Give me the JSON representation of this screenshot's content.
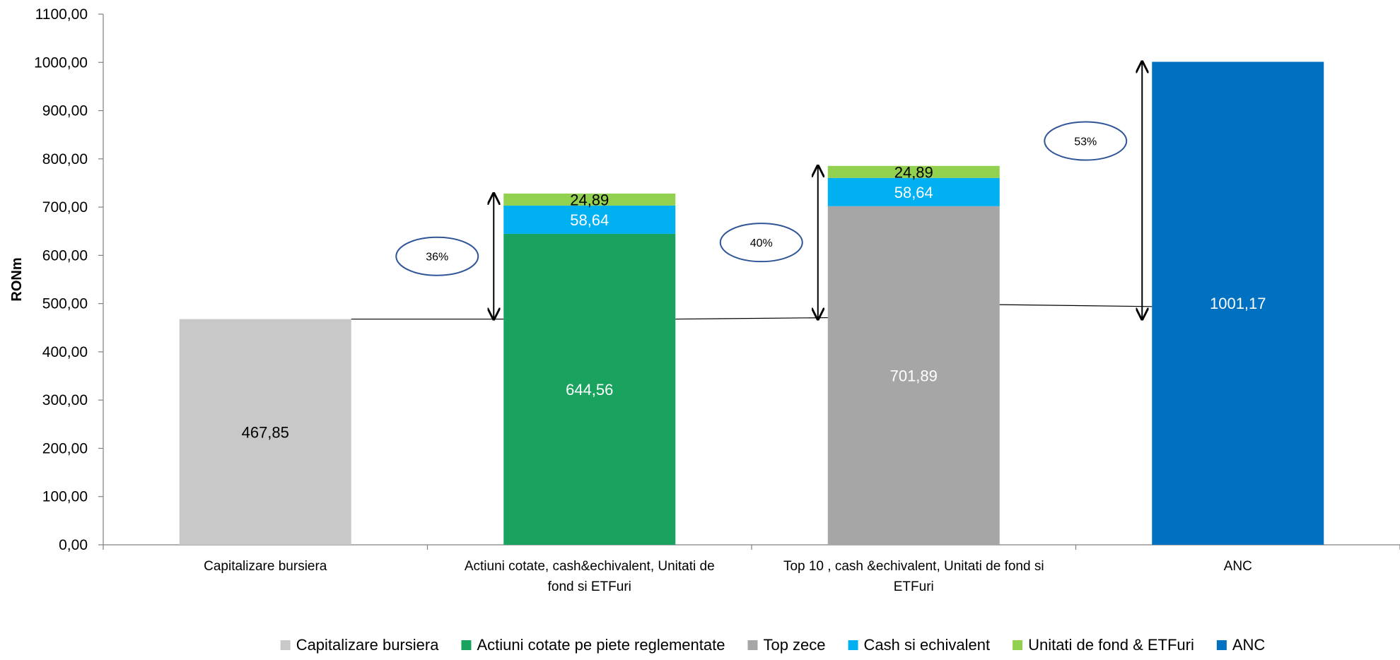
{
  "chart_data": {
    "type": "bar",
    "stacked": true,
    "ylabel": "RONm",
    "ylim": [
      0,
      1100
    ],
    "yticks": [
      "0,00",
      "100,00",
      "200,00",
      "300,00",
      "400,00",
      "500,00",
      "600,00",
      "700,00",
      "800,00",
      "900,00",
      "1000,00",
      "1100,00"
    ],
    "categories": [
      [
        "Capitalizare bursiera"
      ],
      [
        "Actiuni cotate, cash&echivalent, Unitati de",
        "fond si ETFuri"
      ],
      [
        "Top 10 , cash &echivalent, Unitati de fond si",
        "ETFuri"
      ],
      [
        "ANC"
      ]
    ],
    "series": [
      {
        "name": "Capitalizare bursiera",
        "color": "#c8c8c8",
        "labelColor": "#000000",
        "values": [
          467.85,
          null,
          null,
          null
        ],
        "labels": [
          "467,85",
          "",
          "",
          ""
        ]
      },
      {
        "name": "Actiuni cotate  pe piete reglementate",
        "color": "#1aa35f",
        "labelColor": "#ffffff",
        "values": [
          null,
          644.56,
          null,
          null
        ],
        "labels": [
          "",
          "644,56",
          "",
          ""
        ]
      },
      {
        "name": "Top zece",
        "color": "#a6a6a6",
        "labelColor": "#ffffff",
        "values": [
          null,
          null,
          701.89,
          null
        ],
        "labels": [
          "",
          "",
          "701,89",
          ""
        ]
      },
      {
        "name": "Cash si echivalent",
        "color": "#00b0f0",
        "labelColor": "#ffffff",
        "values": [
          null,
          58.64,
          58.64,
          null
        ],
        "labels": [
          "",
          "58,64",
          "58,64",
          ""
        ]
      },
      {
        "name": "Unitati de fond  &  ETFuri",
        "color": "#92d050",
        "labelColor": "#000000",
        "values": [
          null,
          24.89,
          24.89,
          null
        ],
        "labels": [
          "",
          "24,89",
          "24,89",
          ""
        ]
      },
      {
        "name": "ANC",
        "color": "#0070c0",
        "labelColor": "#ffffff",
        "values": [
          null,
          null,
          null,
          1001.17
        ],
        "labels": [
          "",
          "",
          "",
          "1001,17"
        ]
      }
    ],
    "annotations": [
      {
        "text": "36%",
        "category": 1
      },
      {
        "text": "40%",
        "category": 2
      },
      {
        "text": "53%",
        "category": 3
      }
    ],
    "legend": "bottom",
    "grid": false
  }
}
